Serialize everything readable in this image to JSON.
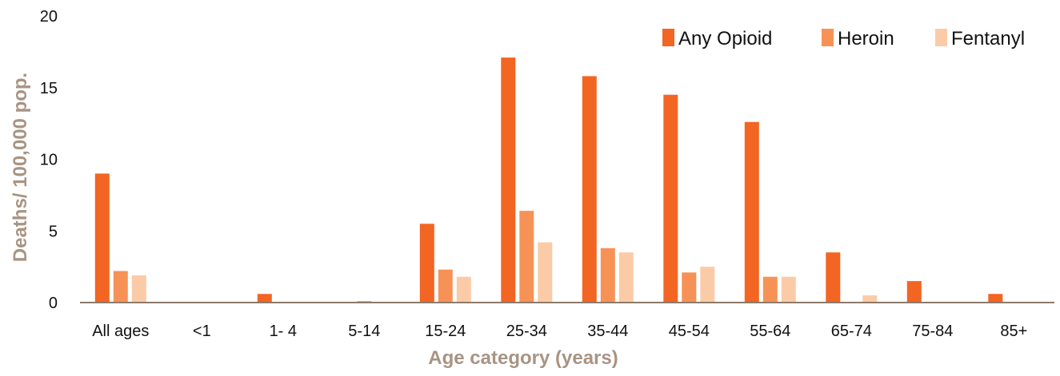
{
  "chart_data": {
    "type": "bar",
    "title": "",
    "xlabel": "Age category (years)",
    "ylabel": "Deaths/ 100,000 pop.",
    "categories": [
      "All ages",
      "<1",
      "1- 4",
      "5-14",
      "15-24",
      "25-34",
      "35-44",
      "45-54",
      "55-64",
      "65-74",
      "75-84",
      "85+"
    ],
    "series": [
      {
        "name": "Any Opioid",
        "color": "#F26522",
        "values": [
          9.0,
          0,
          0.6,
          0,
          5.5,
          17.1,
          15.8,
          14.5,
          12.6,
          3.5,
          1.5,
          0.6
        ]
      },
      {
        "name": "Heroin",
        "color": "#F79256",
        "values": [
          2.2,
          0,
          0,
          0.1,
          2.3,
          6.4,
          3.8,
          2.1,
          1.8,
          0,
          0,
          0
        ]
      },
      {
        "name": "Fentanyl",
        "color": "#FBCBA7",
        "values": [
          1.9,
          0,
          0,
          0,
          1.8,
          4.2,
          3.5,
          2.5,
          1.8,
          0.5,
          0,
          0
        ]
      }
    ],
    "ylim": [
      0,
      20
    ],
    "yticks": [
      0,
      5,
      10,
      15,
      20
    ],
    "grid": false,
    "legend_position": "top-right",
    "axis_title_color": "#A89483",
    "axis_line_color": "#8C7A6B"
  }
}
